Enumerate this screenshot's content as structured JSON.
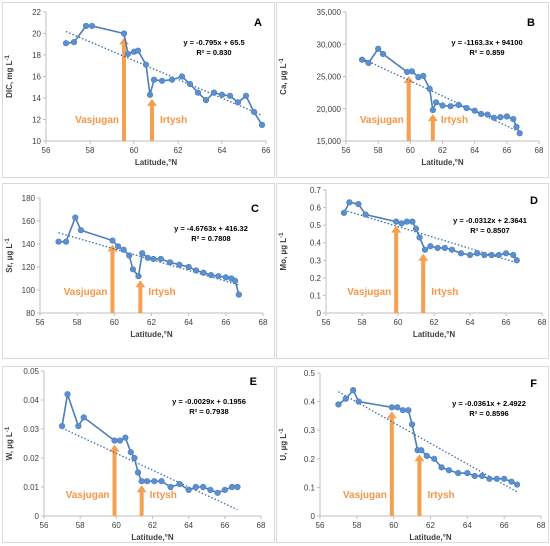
{
  "chart_data": [
    {
      "type": "scatter",
      "panel_letter": "A",
      "xlabel": "Latitude,°N",
      "ylabel": "DIC, mg L",
      "ylabel_sup": "-1",
      "xlim": [
        56,
        67
      ],
      "ylim": [
        10,
        22
      ],
      "xticks": [
        "56",
        "58",
        "60",
        "62",
        "64",
        "66"
      ],
      "yticks": [
        "10",
        "12",
        "14",
        "16",
        "18",
        "20",
        "22"
      ],
      "grid": false,
      "series": [
        {
          "x": [
            57.0,
            57.4,
            58.0,
            58.3,
            59.9,
            60.1,
            60.4,
            60.6,
            61.0,
            61.2,
            61.4,
            61.8,
            62.3,
            62.8,
            63.2,
            63.6,
            64.0,
            64.4,
            64.8,
            65.2,
            65.6,
            66.0,
            66.4,
            66.8
          ],
          "y": [
            19.1,
            19.2,
            20.7,
            20.7,
            20.0,
            18.1,
            18.3,
            18.4,
            17.1,
            14.3,
            15.7,
            15.6,
            15.7,
            16.0,
            15.3,
            14.5,
            13.8,
            14.5,
            14.3,
            14.2,
            13.6,
            14.2,
            12.7,
            11.5
          ]
        }
      ],
      "trendline": {
        "equation": "y = -0.795x + 65.5",
        "r2": "R² = 0.830",
        "slope": -0.795,
        "intercept": 65.5
      },
      "annotations": [
        {
          "text": "Vasjugan",
          "arrow_x": 59.9
        },
        {
          "text": "Irtysh",
          "arrow_x": 61.3
        }
      ]
    },
    {
      "type": "scatter",
      "panel_letter": "B",
      "xlabel": "Latitude,°N",
      "ylabel": "Ca, µg L",
      "ylabel_sup": "-1",
      "xlim": [
        56,
        68
      ],
      "ylim": [
        15000,
        35000
      ],
      "xticks": [
        "56",
        "58",
        "60",
        "62",
        "64",
        "66",
        "68"
      ],
      "yticks": [
        "15,000",
        "20,000",
        "25,000",
        "30,000",
        "35,000"
      ],
      "grid": false,
      "series": [
        {
          "x": [
            57.0,
            57.4,
            58.0,
            58.3,
            59.8,
            60.1,
            60.5,
            60.8,
            61.2,
            61.4,
            61.6,
            62.0,
            62.5,
            63.0,
            63.5,
            64.0,
            64.4,
            64.8,
            65.2,
            65.6,
            66.0,
            66.4,
            66.6,
            66.8
          ],
          "y": [
            27600,
            27100,
            29300,
            28500,
            25700,
            25800,
            24900,
            25100,
            23100,
            19800,
            21000,
            20500,
            20400,
            20600,
            20100,
            19700,
            19200,
            19100,
            18600,
            18700,
            18800,
            18400,
            17200,
            16200
          ]
        }
      ],
      "trendline": {
        "equation": "y = -1163.3x + 94100",
        "r2": "R² = 0.859",
        "slope": -1163.3,
        "intercept": 94100
      },
      "annotations": [
        {
          "text": "Vasjugan",
          "arrow_x": 59.9
        },
        {
          "text": "Irtysh",
          "arrow_x": 61.4
        }
      ]
    },
    {
      "type": "scatter",
      "panel_letter": "C",
      "xlabel": "Latitude,°N",
      "ylabel": "Sr, µg L",
      "ylabel_sup": "-1",
      "xlim": [
        56,
        68
      ],
      "ylim": [
        80,
        180
      ],
      "xticks": [
        "56",
        "58",
        "60",
        "62",
        "64",
        "66",
        "68"
      ],
      "yticks": [
        "80",
        "100",
        "120",
        "140",
        "160",
        "180"
      ],
      "grid": false,
      "series": [
        {
          "x": [
            57.0,
            57.4,
            57.9,
            58.2,
            59.9,
            60.2,
            60.5,
            60.8,
            61.0,
            61.3,
            61.5,
            61.8,
            62.1,
            62.5,
            63.0,
            63.5,
            64.0,
            64.4,
            64.8,
            65.2,
            65.6,
            66.0,
            66.3,
            66.5,
            66.7
          ],
          "y": [
            142,
            142,
            163,
            152,
            143,
            138,
            135,
            130,
            118,
            112,
            132,
            128,
            127,
            127,
            124,
            122,
            120,
            117,
            115,
            113,
            112,
            111,
            110,
            108,
            96
          ]
        }
      ],
      "trendline": {
        "equation": "y = -4.6763x + 416.32",
        "r2": "R² = 0.7808",
        "slope": -4.6763,
        "intercept": 416.32
      },
      "annotations": [
        {
          "text": "Vasjugan",
          "arrow_x": 59.9
        },
        {
          "text": "Irtysh",
          "arrow_x": 61.4
        }
      ]
    },
    {
      "type": "scatter",
      "panel_letter": "D",
      "xlabel": "Latitude,°N",
      "ylabel": "Mo, µg L",
      "ylabel_sup": "-1",
      "xlim": [
        56,
        68
      ],
      "ylim": [
        0,
        0.7
      ],
      "xticks": [
        "56",
        "58",
        "60",
        "62",
        "64",
        "66",
        "68"
      ],
      "yticks": [
        "0",
        "0.1",
        "0.2",
        "0.3",
        "0.4",
        "0.5",
        "0.6",
        "0.7"
      ],
      "grid": false,
      "series": [
        {
          "x": [
            57.0,
            57.3,
            57.8,
            58.2,
            59.9,
            60.2,
            60.5,
            60.8,
            61.0,
            61.2,
            61.5,
            61.8,
            62.2,
            62.6,
            63.0,
            63.5,
            64.0,
            64.4,
            64.8,
            65.2,
            65.6,
            66.0,
            66.4,
            66.6
          ],
          "y": [
            0.57,
            0.63,
            0.62,
            0.56,
            0.52,
            0.51,
            0.52,
            0.52,
            0.48,
            0.43,
            0.36,
            0.38,
            0.37,
            0.37,
            0.36,
            0.34,
            0.33,
            0.34,
            0.33,
            0.33,
            0.33,
            0.34,
            0.33,
            0.3
          ]
        }
      ],
      "trendline": {
        "equation": "y = -0.0312x + 2.3641",
        "r2": "R² = 0.8507",
        "slope": -0.0312,
        "intercept": 2.3641
      },
      "annotations": [
        {
          "text": "Vasjugan",
          "arrow_x": 59.9
        },
        {
          "text": "Irtysh",
          "arrow_x": 61.4
        }
      ]
    },
    {
      "type": "scatter",
      "panel_letter": "E",
      "xlabel": "Latitude,°N",
      "ylabel": "W, µg L",
      "ylabel_sup": "-1",
      "xlim": [
        56,
        68
      ],
      "ylim": [
        0,
        0.05
      ],
      "xticks": [
        "56",
        "58",
        "60",
        "62",
        "64",
        "66",
        "68"
      ],
      "yticks": [
        "0",
        "0.01",
        "0.02",
        "0.03",
        "0.04",
        "0.05"
      ],
      "grid": false,
      "series": [
        {
          "x": [
            57.0,
            57.3,
            57.9,
            58.2,
            59.9,
            60.2,
            60.5,
            60.8,
            61.0,
            61.2,
            61.4,
            61.7,
            62.1,
            62.5,
            63.0,
            63.5,
            64.0,
            64.4,
            64.8,
            65.2,
            65.6,
            66.0,
            66.4,
            66.7
          ],
          "y": [
            0.031,
            0.042,
            0.031,
            0.034,
            0.026,
            0.026,
            0.027,
            0.022,
            0.02,
            0.015,
            0.012,
            0.012,
            0.012,
            0.012,
            0.01,
            0.011,
            0.009,
            0.01,
            0.01,
            0.009,
            0.008,
            0.009,
            0.01,
            0.01
          ]
        }
      ],
      "trendline": {
        "equation": "y = -0.0029x + 0.1956",
        "r2": "R² = 0.7938",
        "slope": -0.0029,
        "intercept": 0.1956
      },
      "annotations": [
        {
          "text": "Vasjugan",
          "arrow_x": 59.9
        },
        {
          "text": "Irtysh",
          "arrow_x": 61.4
        }
      ]
    },
    {
      "type": "scatter",
      "panel_letter": "F",
      "xlabel": "Latitude,°N",
      "ylabel": "U, µg L",
      "ylabel_sup": "-1",
      "xlim": [
        56,
        68
      ],
      "ylim": [
        0,
        0.5
      ],
      "xticks": [
        "56",
        "58",
        "60",
        "62",
        "64",
        "66",
        "68"
      ],
      "yticks": [
        "0",
        "0.1",
        "0.2",
        "0.3",
        "0.4",
        "0.5"
      ],
      "grid": false,
      "series": [
        {
          "x": [
            57.0,
            57.4,
            57.8,
            58.1,
            59.9,
            60.2,
            60.5,
            60.8,
            61.0,
            61.3,
            61.5,
            61.8,
            62.2,
            62.6,
            63.0,
            63.5,
            64.0,
            64.4,
            64.8,
            65.2,
            65.6,
            66.0,
            66.4,
            66.7
          ],
          "y": [
            0.39,
            0.41,
            0.44,
            0.4,
            0.38,
            0.38,
            0.37,
            0.37,
            0.32,
            0.23,
            0.23,
            0.21,
            0.2,
            0.17,
            0.16,
            0.15,
            0.15,
            0.14,
            0.14,
            0.13,
            0.13,
            0.13,
            0.12,
            0.11
          ]
        }
      ],
      "trendline": {
        "equation": "y = -0.0361x + 2.4922",
        "r2": "R² = 0.8596",
        "slope": -0.0361,
        "intercept": 2.4922
      },
      "annotations": [
        {
          "text": "Vasjugan",
          "arrow_x": 59.9
        },
        {
          "text": "Irtysh",
          "arrow_x": 61.4
        }
      ]
    }
  ],
  "colors": {
    "series": "#4a7ebb",
    "marker": "#5b8fd0",
    "trendline": "#3a6ea8",
    "arrow": "#f4a050",
    "annotation_text": "#f79646",
    "text": "#404040",
    "axis": "#bfbfbf",
    "panel_border": "#d9d9d9"
  }
}
